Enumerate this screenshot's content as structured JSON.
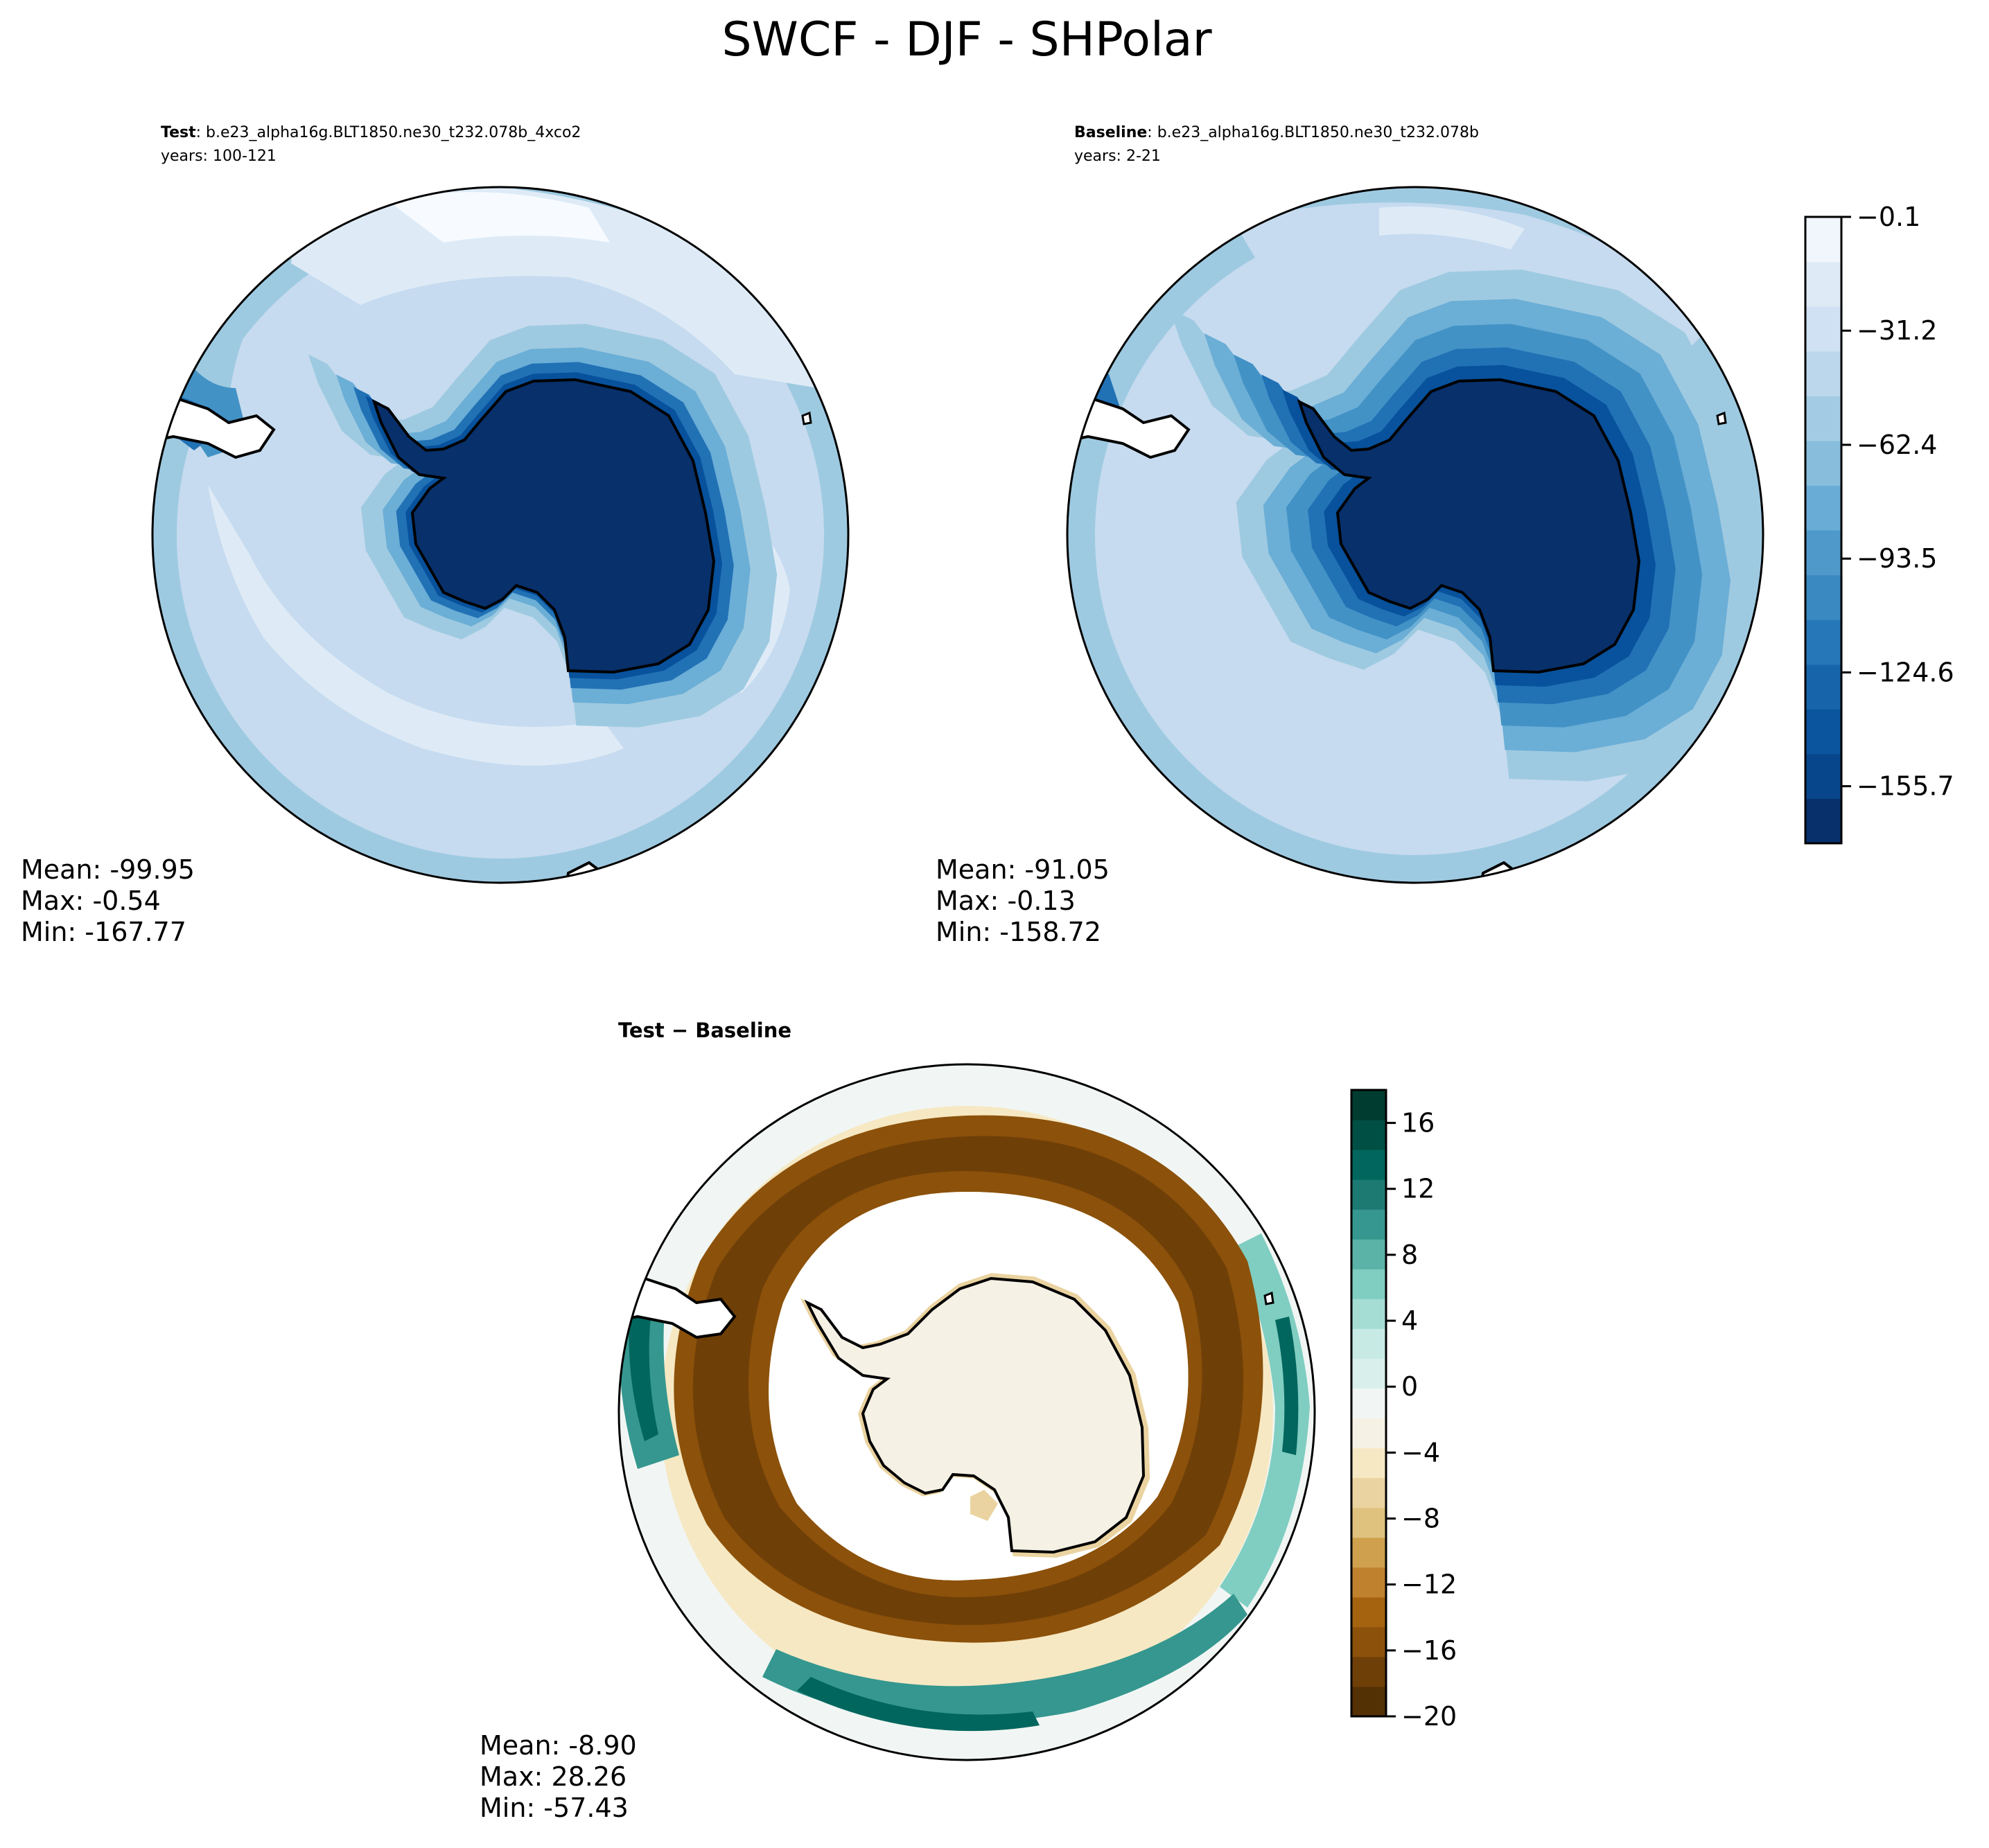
{
  "figure": {
    "title": "SWCF - DJF - SHPolar"
  },
  "panels": {
    "test": {
      "label_bold": "Test",
      "label_rest": ": b.e23_alpha16g.BLT1850.ne30_t232.078b_4xco2",
      "years": "years: 100-121",
      "stats": {
        "mean": "Mean: -99.95",
        "max": "Max: -0.54",
        "min": "Min: -167.77"
      }
    },
    "baseline": {
      "label_bold": "Baseline",
      "label_rest": ": b.e23_alpha16g.BLT1850.ne30_t232.078b",
      "years": "years: 2-21",
      "stats": {
        "mean": "Mean: -91.05",
        "max": "Max: -0.13",
        "min": "Min: -158.72"
      }
    },
    "diff": {
      "label": "Test − Baseline",
      "stats": {
        "mean": "Mean: -8.90",
        "max": "Max: 28.26",
        "min": "Min: -57.43"
      }
    }
  },
  "colors": {
    "blues": [
      "#f7fbff",
      "#deebf7",
      "#c6dbef",
      "#9ecae1",
      "#6baed6",
      "#4292c6",
      "#2171b5",
      "#08519c",
      "#08306b"
    ],
    "blues_fine": [
      "#f0f6fc",
      "#deebf7",
      "#cfe1f2",
      "#bcd7eb",
      "#a3cce4",
      "#88bedc",
      "#69acd5",
      "#4e99ca",
      "#3a89c1",
      "#2677b8",
      "#1764ab",
      "#0b559f",
      "#08468b",
      "#08306b"
    ],
    "brbg": [
      "#543005",
      "#6f3f08",
      "#8c510a",
      "#a5630f",
      "#bf812d",
      "#cfa04d",
      "#dfc27d",
      "#ead3a0",
      "#f6e8c3",
      "#f5f1e5",
      "#f1f6f4",
      "#d9efeb",
      "#c7eae5",
      "#a5ddd5",
      "#80cdc1",
      "#5bb2a6",
      "#35978f",
      "#1d7a72",
      "#01665e",
      "#004f44",
      "#003c30"
    ],
    "coast": "#000000"
  },
  "chart_data": [
    {
      "type": "heatmap",
      "name": "Test",
      "projection": "south-polar-stereographic",
      "stats": {
        "mean": -99.95,
        "max": -0.54,
        "min": -167.77
      },
      "colorbar": {
        "ticks": [
          -0.1,
          -31.2,
          -62.4,
          -93.5,
          -124.6,
          -155.7
        ],
        "tick_labels": [
          "−0.1",
          "−31.2",
          "−62.4",
          "−93.5",
          "−124.6",
          "−155.7"
        ],
        "range": [
          -171.3,
          -0.1
        ]
      }
    },
    {
      "type": "heatmap",
      "name": "Baseline",
      "projection": "south-polar-stereographic",
      "stats": {
        "mean": -91.05,
        "max": -0.13,
        "min": -158.72
      }
    },
    {
      "type": "heatmap",
      "name": "Test − Baseline",
      "projection": "south-polar-stereographic",
      "stats": {
        "mean": -8.9,
        "max": 28.26,
        "min": -57.43
      },
      "colorbar": {
        "ticks": [
          16,
          12,
          8,
          4,
          0,
          -4,
          -8,
          -12,
          -16,
          -20
        ],
        "tick_labels": [
          "16",
          "12",
          "8",
          "4",
          "0",
          "−4",
          "−8",
          "−12",
          "−16",
          "−20"
        ],
        "range": [
          -20,
          18
        ]
      }
    }
  ]
}
